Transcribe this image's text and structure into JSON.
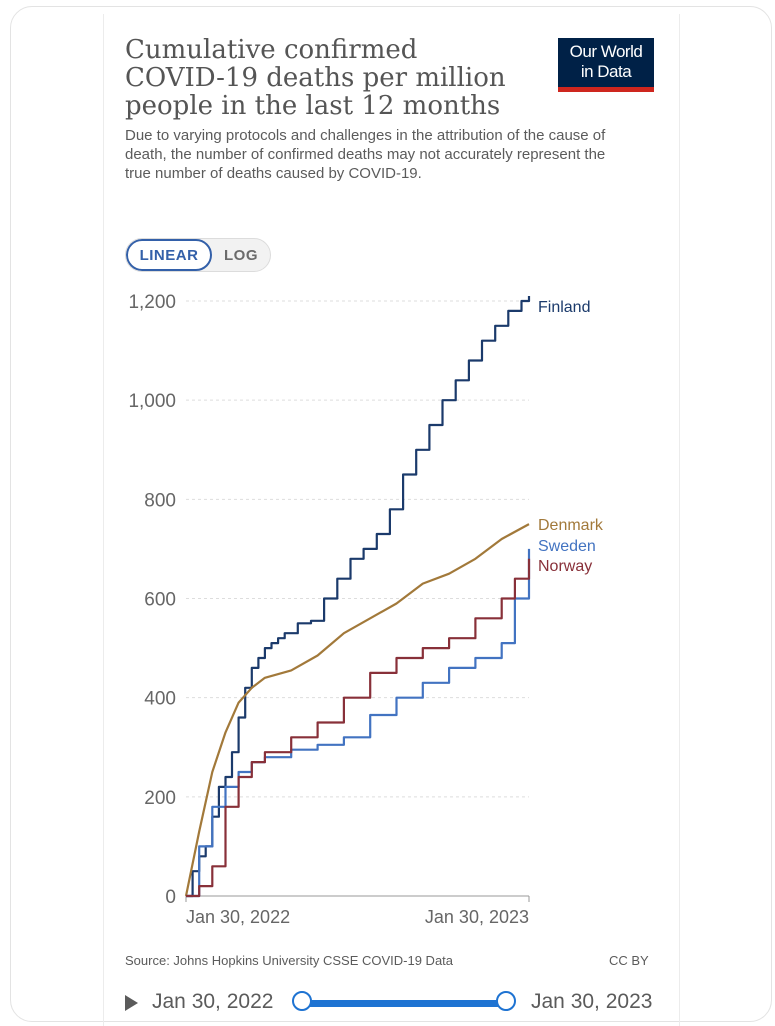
{
  "header": {
    "title": "Cumulative confirmed\nCOVID-19 deaths per million\npeople in the last 12 months",
    "subtitle": "Due to varying protocols and challenges in the attribution of the cause of death, the number of confirmed deaths may not accurately represent the true number of deaths caused by COVID-19.",
    "logo_line1": "Our World",
    "logo_line2": "in Data"
  },
  "scale_toggle": {
    "linear_label": "LINEAR",
    "log_label": "LOG",
    "selected": "LINEAR"
  },
  "colors": {
    "logo_bg": "#002147",
    "logo_bar": "#ce261e",
    "accent": "#3360a9",
    "timeline": "#1e73d2"
  },
  "chart_data": {
    "type": "line",
    "title": "Cumulative confirmed COVID-19 deaths per million people in the last 12 months",
    "ylim": [
      0,
      1200
    ],
    "yticks": [
      0,
      200,
      400,
      600,
      800,
      1000,
      1200
    ],
    "ytick_labels": [
      "0",
      "200",
      "400",
      "600",
      "800",
      "1,000",
      "1,200"
    ],
    "x_range": [
      "2022-01-30",
      "2023-01-30"
    ],
    "xtick_labels": [
      "Jan 30, 2022",
      "Jan 30, 2023"
    ],
    "grid": true,
    "legend": "direct-labels-right",
    "series": [
      {
        "name": "Finland",
        "color": "#1b3a6b",
        "step": true,
        "x": [
          "2022-01-30",
          "2022-02-06",
          "2022-02-13",
          "2022-02-20",
          "2022-02-27",
          "2022-03-06",
          "2022-03-13",
          "2022-03-20",
          "2022-03-27",
          "2022-04-03",
          "2022-04-10",
          "2022-04-17",
          "2022-04-24",
          "2022-05-01",
          "2022-05-08",
          "2022-05-15",
          "2022-05-29",
          "2022-06-12",
          "2022-06-26",
          "2022-07-10",
          "2022-07-24",
          "2022-08-07",
          "2022-08-21",
          "2022-09-04",
          "2022-09-18",
          "2022-10-02",
          "2022-10-16",
          "2022-10-30",
          "2022-11-13",
          "2022-11-27",
          "2022-12-11",
          "2022-12-25",
          "2023-01-08",
          "2023-01-22",
          "2023-01-30"
        ],
        "values": [
          0,
          50,
          80,
          100,
          160,
          220,
          240,
          290,
          360,
          420,
          460,
          480,
          500,
          510,
          520,
          530,
          550,
          555,
          600,
          640,
          680,
          700,
          730,
          780,
          850,
          900,
          950,
          1000,
          1040,
          1080,
          1120,
          1150,
          1180,
          1200,
          1210
        ]
      },
      {
        "name": "Denmark",
        "color": "#a2793a",
        "step": false,
        "x": [
          "2022-01-30",
          "2022-02-13",
          "2022-02-27",
          "2022-03-13",
          "2022-03-27",
          "2022-04-10",
          "2022-04-24",
          "2022-05-22",
          "2022-06-19",
          "2022-07-17",
          "2022-08-14",
          "2022-09-11",
          "2022-10-09",
          "2022-11-06",
          "2022-12-04",
          "2023-01-01",
          "2023-01-30"
        ],
        "values": [
          0,
          130,
          250,
          330,
          390,
          420,
          440,
          455,
          485,
          530,
          560,
          590,
          630,
          650,
          680,
          720,
          750
        ]
      },
      {
        "name": "Sweden",
        "color": "#4273c1",
        "step": true,
        "x": [
          "2022-01-30",
          "2022-02-13",
          "2022-02-27",
          "2022-03-13",
          "2022-03-27",
          "2022-04-10",
          "2022-04-24",
          "2022-05-22",
          "2022-06-19",
          "2022-07-17",
          "2022-08-14",
          "2022-09-11",
          "2022-10-09",
          "2022-11-06",
          "2022-12-04",
          "2023-01-01",
          "2023-01-15",
          "2023-01-30"
        ],
        "values": [
          0,
          100,
          180,
          220,
          250,
          270,
          280,
          295,
          305,
          320,
          365,
          400,
          430,
          460,
          480,
          510,
          600,
          700
        ]
      },
      {
        "name": "Norway",
        "color": "#883039",
        "step": true,
        "x": [
          "2022-01-30",
          "2022-02-13",
          "2022-02-27",
          "2022-03-13",
          "2022-03-27",
          "2022-04-10",
          "2022-04-24",
          "2022-05-22",
          "2022-06-19",
          "2022-07-17",
          "2022-08-14",
          "2022-09-11",
          "2022-10-09",
          "2022-11-06",
          "2022-12-04",
          "2023-01-01",
          "2023-01-15",
          "2023-01-30"
        ],
        "values": [
          0,
          20,
          60,
          180,
          240,
          270,
          290,
          320,
          350,
          400,
          450,
          480,
          500,
          520,
          560,
          600,
          640,
          680
        ]
      }
    ]
  },
  "footer": {
    "source": "Source: Johns Hopkins University CSSE COVID-19 Data",
    "license": "CC BY"
  },
  "timeline": {
    "start_label": "Jan 30, 2022",
    "end_label": "Jan 30, 2023"
  }
}
